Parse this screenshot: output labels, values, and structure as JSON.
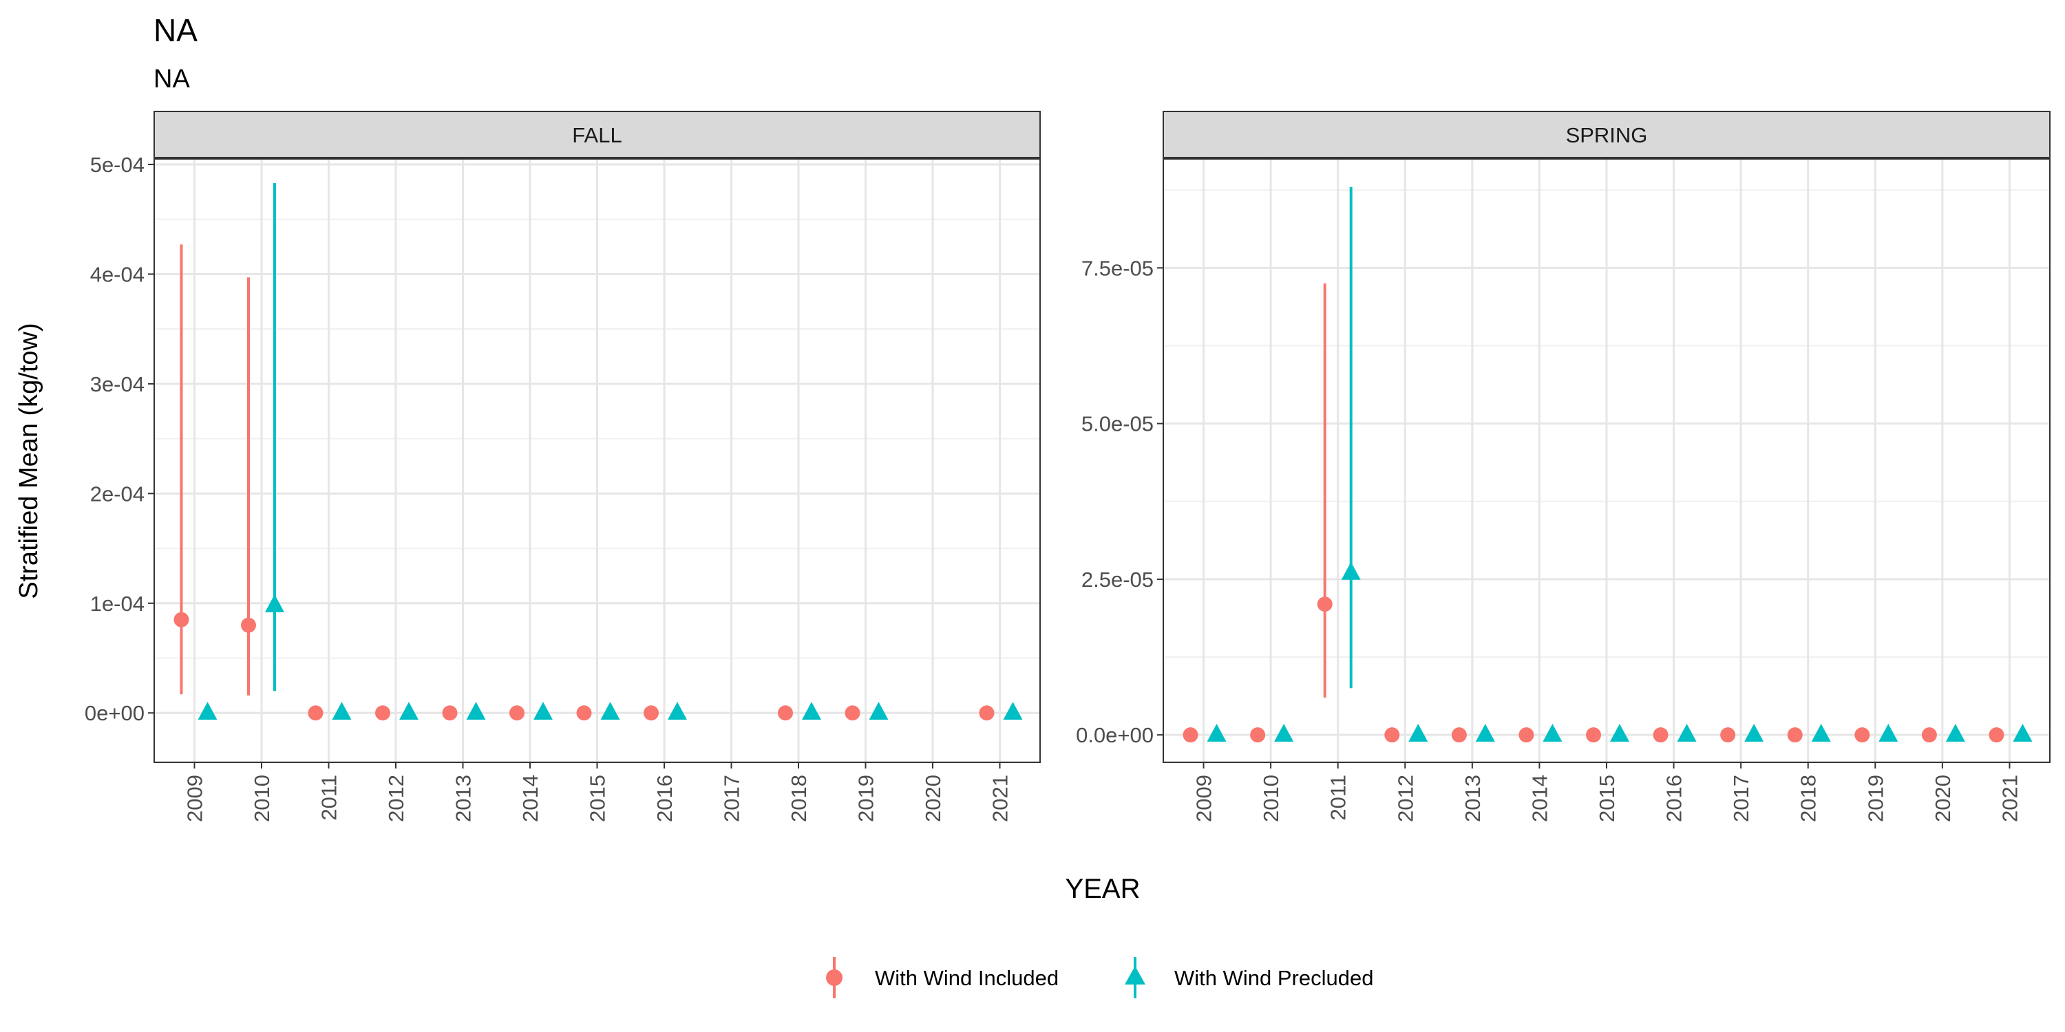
{
  "title": "NA",
  "subtitle": "NA",
  "xlabel": "YEAR",
  "ylabel": "Stratified Mean (kg/tow)",
  "legend": {
    "placement": "bottom",
    "items": [
      {
        "label": "With Wind Included",
        "shape": "circle",
        "color": "#F8766D"
      },
      {
        "label": "With Wind Precluded",
        "shape": "triangle",
        "color": "#00BFC4"
      }
    ]
  },
  "chart_data": [
    {
      "type": "scatter",
      "panel": "FALL",
      "x_ticks": [
        "2009",
        "2010",
        "2011",
        "2012",
        "2013",
        "2014",
        "2015",
        "2016",
        "2017",
        "2018",
        "2019",
        "2020",
        "2021"
      ],
      "ylim": [
        -4.5e-05,
        0.000505
      ],
      "y_ticks": [
        {
          "value": 0,
          "label": "0e+00"
        },
        {
          "value": 0.0001,
          "label": "1e-04"
        },
        {
          "value": 0.0002,
          "label": "2e-04"
        },
        {
          "value": 0.0003,
          "label": "3e-04"
        },
        {
          "value": 0.0004,
          "label": "4e-04"
        },
        {
          "value": 0.0005,
          "label": "5e-04"
        }
      ],
      "y_minor": [
        5e-05,
        0.00015,
        0.00025,
        0.00035,
        0.00045
      ],
      "series": [
        {
          "name": "With Wind Included",
          "points": [
            {
              "x": "2009",
              "y": 8.5e-05,
              "lo": 1.7e-05,
              "hi": 0.000427
            },
            {
              "x": "2010",
              "y": 8e-05,
              "lo": 1.6e-05,
              "hi": 0.000397
            },
            {
              "x": "2011",
              "y": 0
            },
            {
              "x": "2012",
              "y": 0
            },
            {
              "x": "2013",
              "y": 0
            },
            {
              "x": "2014",
              "y": 0
            },
            {
              "x": "2015",
              "y": 0
            },
            {
              "x": "2016",
              "y": 0
            },
            {
              "x": "2018",
              "y": 0
            },
            {
              "x": "2019",
              "y": 0
            },
            {
              "x": "2021",
              "y": 0
            }
          ]
        },
        {
          "name": "With Wind Precluded",
          "points": [
            {
              "x": "2009",
              "y": 0
            },
            {
              "x": "2010",
              "y": 9.8e-05,
              "lo": 2e-05,
              "hi": 0.000483
            },
            {
              "x": "2011",
              "y": 0
            },
            {
              "x": "2012",
              "y": 0
            },
            {
              "x": "2013",
              "y": 0
            },
            {
              "x": "2014",
              "y": 0
            },
            {
              "x": "2015",
              "y": 0
            },
            {
              "x": "2016",
              "y": 0
            },
            {
              "x": "2018",
              "y": 0
            },
            {
              "x": "2019",
              "y": 0
            },
            {
              "x": "2021",
              "y": 0
            }
          ]
        }
      ]
    },
    {
      "type": "scatter",
      "panel": "SPRING",
      "x_ticks": [
        "2009",
        "2010",
        "2011",
        "2012",
        "2013",
        "2014",
        "2015",
        "2016",
        "2017",
        "2018",
        "2019",
        "2020",
        "2021"
      ],
      "ylim": [
        -4.4e-06,
        9.25e-05
      ],
      "y_ticks": [
        {
          "value": 0,
          "label": "0.0e+00"
        },
        {
          "value": 2.5e-05,
          "label": "2.5e-05"
        },
        {
          "value": 5e-05,
          "label": "5.0e-05"
        },
        {
          "value": 7.5e-05,
          "label": "7.5e-05"
        }
      ],
      "y_minor": [
        1.25e-05,
        3.75e-05,
        6.25e-05,
        8.75e-05
      ],
      "series": [
        {
          "name": "With Wind Included",
          "points": [
            {
              "x": "2009",
              "y": 0
            },
            {
              "x": "2010",
              "y": 0
            },
            {
              "x": "2011",
              "y": 2.1e-05,
              "lo": 6e-06,
              "hi": 7.25e-05
            },
            {
              "x": "2012",
              "y": 0
            },
            {
              "x": "2013",
              "y": 0
            },
            {
              "x": "2014",
              "y": 0
            },
            {
              "x": "2015",
              "y": 0
            },
            {
              "x": "2016",
              "y": 0
            },
            {
              "x": "2017",
              "y": 0
            },
            {
              "x": "2018",
              "y": 0
            },
            {
              "x": "2019",
              "y": 0
            },
            {
              "x": "2020",
              "y": 0
            },
            {
              "x": "2021",
              "y": 0
            }
          ]
        },
        {
          "name": "With Wind Precluded",
          "points": [
            {
              "x": "2009",
              "y": 0
            },
            {
              "x": "2010",
              "y": 0
            },
            {
              "x": "2011",
              "y": 2.6e-05,
              "lo": 7.5e-06,
              "hi": 8.8e-05
            },
            {
              "x": "2012",
              "y": 0
            },
            {
              "x": "2013",
              "y": 0
            },
            {
              "x": "2014",
              "y": 0
            },
            {
              "x": "2015",
              "y": 0
            },
            {
              "x": "2016",
              "y": 0
            },
            {
              "x": "2017",
              "y": 0
            },
            {
              "x": "2018",
              "y": 0
            },
            {
              "x": "2019",
              "y": 0
            },
            {
              "x": "2020",
              "y": 0
            },
            {
              "x": "2021",
              "y": 0
            }
          ]
        }
      ]
    }
  ]
}
